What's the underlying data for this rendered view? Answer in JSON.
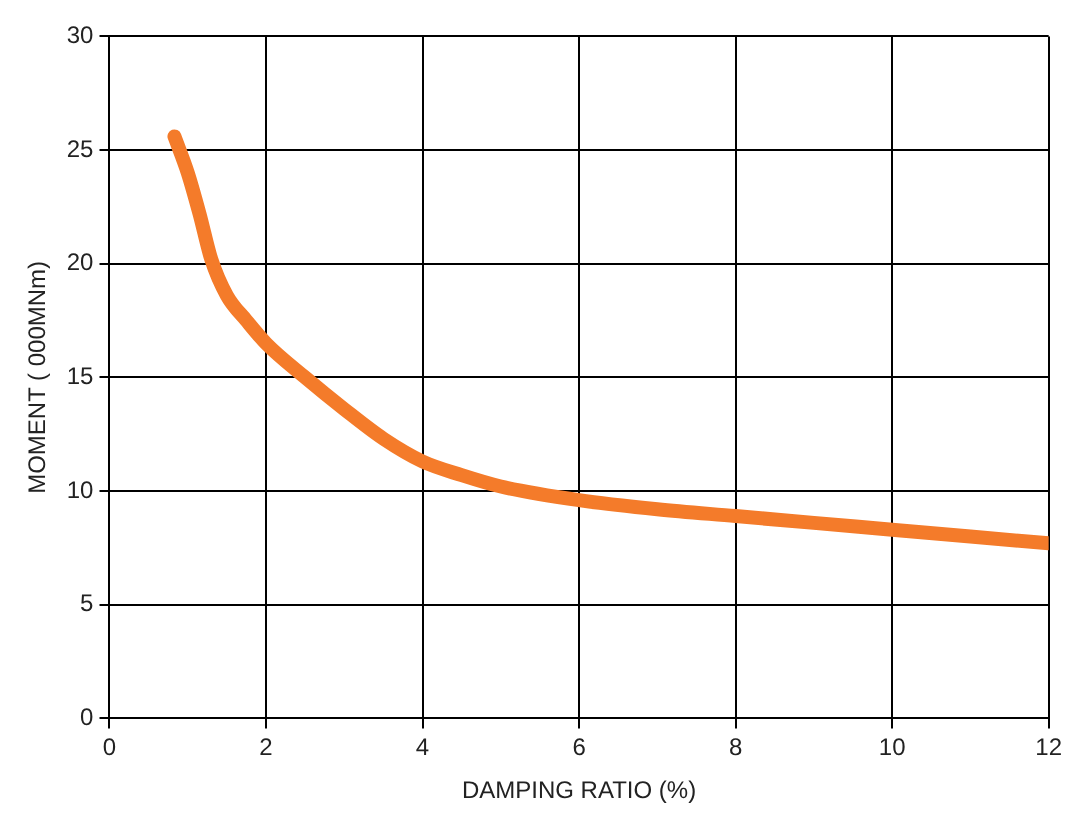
{
  "chart_data": {
    "type": "line",
    "xlabel": "DAMPING RATIO (%)",
    "ylabel": "MOMENT ( 000MNm)",
    "x": [
      0.83,
      1.0,
      1.15,
      1.3,
      1.5,
      1.75,
      2.0,
      2.5,
      3.0,
      3.5,
      4.0,
      4.5,
      5.0,
      6.0,
      7.0,
      8.0,
      9.0,
      10.0,
      11.0,
      12.0
    ],
    "series": [
      {
        "color": "#f47b2a",
        "values": [
          25.6,
          24.0,
          22.2,
          20.2,
          18.6,
          17.5,
          16.5,
          15.0,
          13.6,
          12.3,
          11.3,
          10.7,
          10.2,
          9.6,
          9.2,
          8.9,
          8.6,
          8.3,
          8.0,
          7.7
        ]
      }
    ],
    "xlim": [
      0,
      12
    ],
    "xticks": [
      0,
      2,
      4,
      6,
      8,
      10,
      12
    ],
    "ylim": [
      0,
      30
    ],
    "yticks": [
      0,
      5,
      10,
      15,
      20,
      25,
      30
    ],
    "grid": true,
    "marker": "none",
    "line_style": "solid",
    "legend": false
  }
}
